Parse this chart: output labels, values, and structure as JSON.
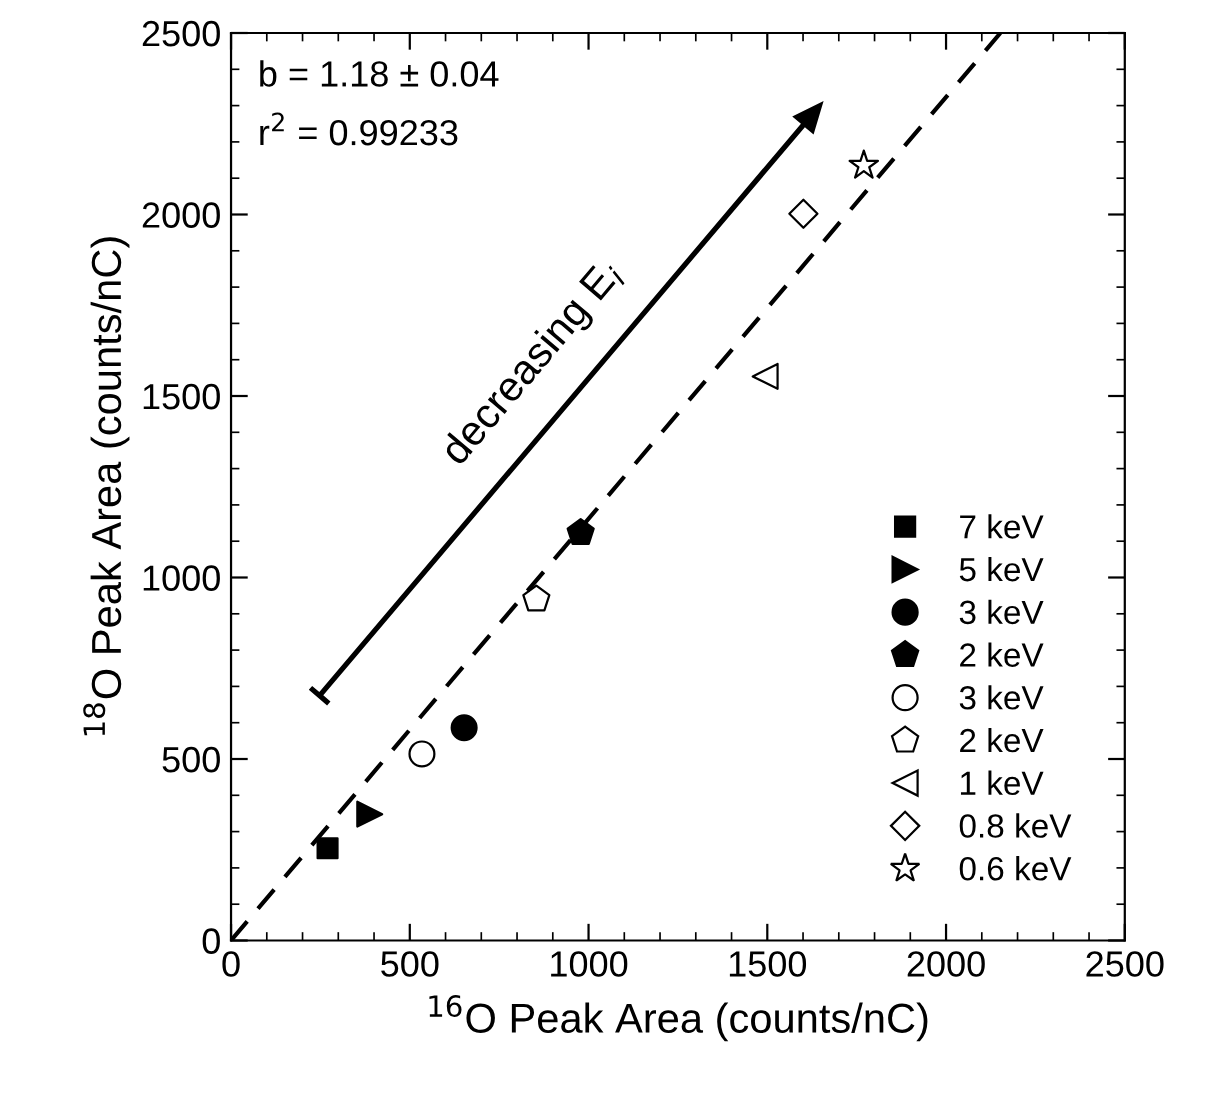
{
  "chart_data": {
    "type": "scatter",
    "xlabel": "$^{16}$O Peak Area (counts/nC)",
    "ylabel": "$^{18}$O Peak Area (counts/nC)",
    "xlim": [
      0,
      2500
    ],
    "ylim": [
      0,
      2500
    ],
    "xticks": [
      0,
      500,
      1000,
      1500,
      2000,
      2500
    ],
    "yticks": [
      0,
      500,
      1000,
      1500,
      2000,
      2500
    ],
    "grid": false,
    "legend": "bottom right",
    "series": [
      {
        "name": "7 keV",
        "color": "#000000",
        "marker": "square",
        "x": [
          270
        ],
        "values": [
          254
        ]
      },
      {
        "name": "5 keV",
        "color": "#000000",
        "marker": "triangle",
        "x": [
          388
        ],
        "values": [
          348
        ]
      },
      {
        "name": "3 keV",
        "color": "#000000",
        "marker": "circle",
        "x": [
          652
        ],
        "values": [
          586
        ]
      },
      {
        "name": "2 keV",
        "color": "#000000",
        "x": [
          978
        ],
        "values": [
          1123
        ]
      },
      {
        "name": "3 keV",
        "color": "#000000",
        "marker": "circle",
        "x": [
          534
        ],
        "values": [
          514
        ]
      },
      {
        "name": "2 keV",
        "color": "#000000",
        "x": [
          854
        ],
        "values": [
          940
        ]
      },
      {
        "name": "1 keV",
        "color": "#000000",
        "marker": "triangle",
        "x": [
          1494
        ],
        "values": [
          1554
        ]
      },
      {
        "name": "0.8 keV",
        "color": "#000000",
        "marker": "diamond",
        "x": [
          1601
        ],
        "values": [
          2002
        ]
      },
      {
        "name": "0.6 keV",
        "color": "#000000",
        "marker": "star",
        "x": [
          1770
        ],
        "values": [
          2135
        ]
      },
      {
        "type": "line",
        "color": "#000000",
        "line_style": "dashed",
        "x": [
          0,
          2152
        ],
        "values": [
          0,
          2500
        ]
      }
    ],
    "annotations": [
      "b = 1.18 ± 0.04",
      "r$^{2}$ = 0.99233",
      "decreasing E$_{i}$"
    ]
  }
}
